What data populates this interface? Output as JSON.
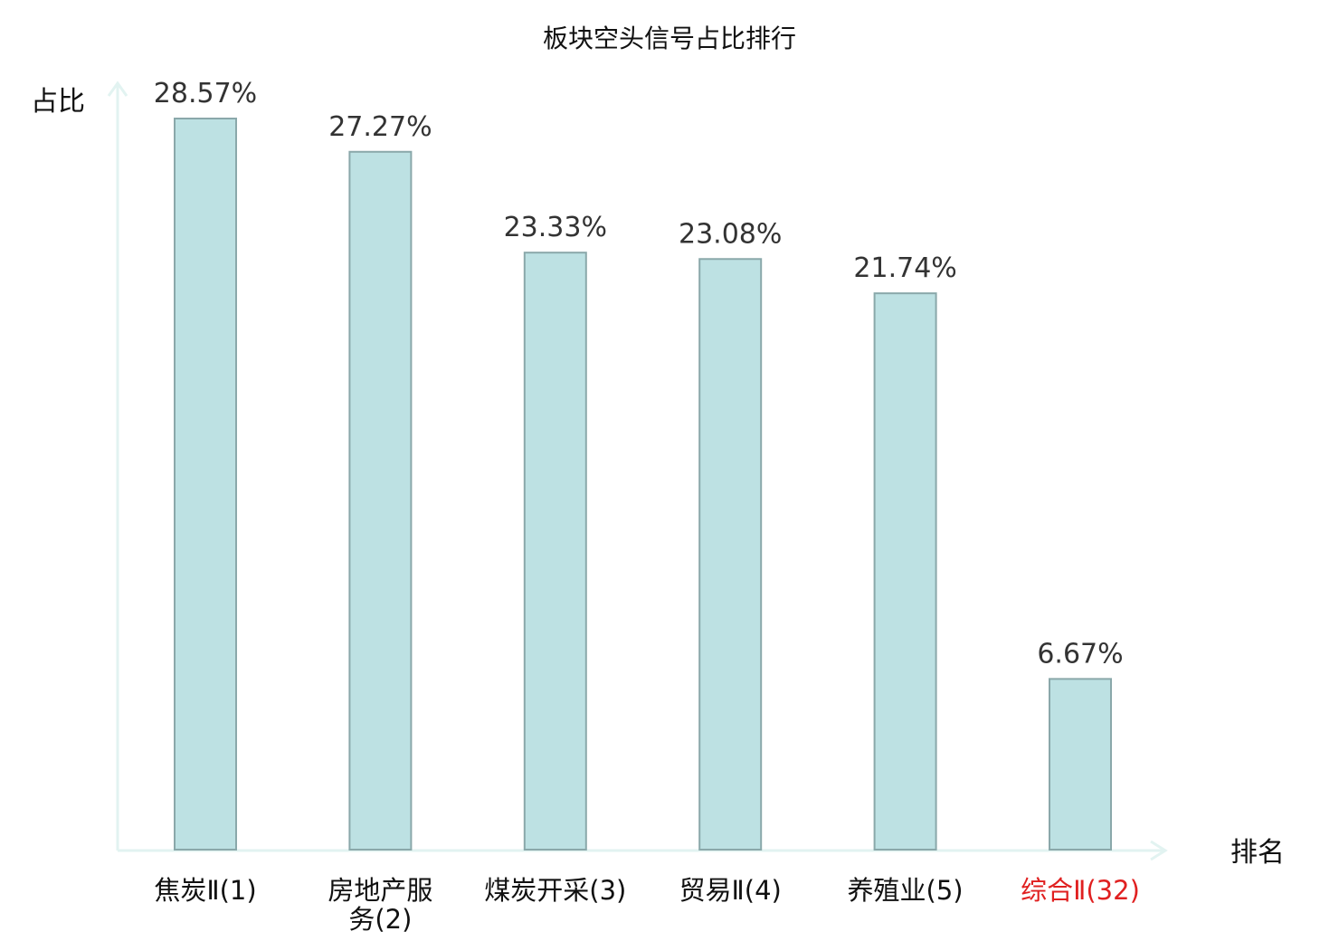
{
  "chart_data": {
    "type": "bar",
    "title": "板块空头信号占比排行",
    "ylabel": "占比",
    "xlabel": "排名",
    "grid": false,
    "categories": [
      [
        "焦炭Ⅱ(1)"
      ],
      [
        "房地产服",
        "务(2)"
      ],
      [
        "煤炭开采(3)"
      ],
      [
        "贸易Ⅱ(4)"
      ],
      [
        "养殖业(5)"
      ],
      [
        "综合Ⅱ(32)"
      ]
    ],
    "values": [
      28.57,
      27.27,
      23.33,
      23.08,
      21.74,
      6.67
    ],
    "value_labels": [
      "28.57%",
      "27.27%",
      "23.33%",
      "23.08%",
      "21.74%",
      "6.67%"
    ],
    "highlight_index": 5,
    "ylim": [
      0,
      30
    ],
    "colors": {
      "bar_fill": "#bde1e3",
      "bar_stroke": "#8aa8aa",
      "axis": "#e2f3f1",
      "highlight_text": "#e02020"
    }
  }
}
